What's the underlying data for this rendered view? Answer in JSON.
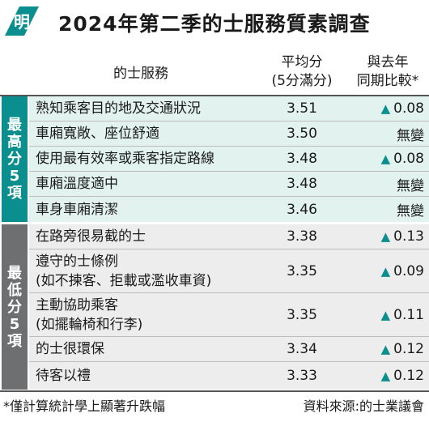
{
  "header": {
    "title": "2024年第二季的士服務質素調查",
    "logo_glyph": "明"
  },
  "columns": {
    "service": "的士服務",
    "avg_line1": "平均分",
    "avg_line2": "(5分滿分)",
    "cmp_line1": "與去年",
    "cmp_line2": "同期比較*"
  },
  "groups": {
    "top": {
      "label": [
        "最",
        "高",
        "分",
        "5",
        "項"
      ],
      "color": "#0b8f8e"
    },
    "bottom": {
      "label": [
        "最",
        "低",
        "分",
        "5",
        "項"
      ],
      "color": "#6e6f70"
    }
  },
  "colors": {
    "up_arrow": "#0b8f8e",
    "top_row_bg": "#e2f2ef",
    "bottom_row_bg": "#ededed"
  },
  "chart_data": {
    "type": "table",
    "title": "2024年第二季的士服務質素調查",
    "columns": [
      "的士服務",
      "平均分(5分滿分)",
      "與去年同期比較*"
    ],
    "rows": [
      {
        "group": "最高分5項",
        "service": "熟知乘客目的地及交通狀況",
        "score": "3.51",
        "change_dir": "up",
        "change": "0.08"
      },
      {
        "group": "最高分5項",
        "service": "車廂寬敞、座位舒適",
        "score": "3.50",
        "change_dir": "none",
        "change": "無變"
      },
      {
        "group": "最高分5項",
        "service": "使用最有效率或乘客指定路線",
        "score": "3.48",
        "change_dir": "up",
        "change": "0.08"
      },
      {
        "group": "最高分5項",
        "service": "車廂溫度適中",
        "score": "3.48",
        "change_dir": "none",
        "change": "無變"
      },
      {
        "group": "最高分5項",
        "service": "車身車廂清潔",
        "score": "3.46",
        "change_dir": "none",
        "change": "無變"
      },
      {
        "group": "最低分5項",
        "service": "在路旁很易截的士",
        "score": "3.38",
        "change_dir": "up",
        "change": "0.13"
      },
      {
        "group": "最低分5項",
        "service": "遵守的士條例\n(如不揀客、拒載或濫收車資)",
        "score": "3.35",
        "change_dir": "up",
        "change": "0.09"
      },
      {
        "group": "最低分5項",
        "service": "主動協助乘客\n(如擺輪椅和行李)",
        "score": "3.35",
        "change_dir": "up",
        "change": "0.11"
      },
      {
        "group": "最低分5項",
        "service": "的士很環保",
        "score": "3.34",
        "change_dir": "up",
        "change": "0.12"
      },
      {
        "group": "最低分5項",
        "service": "待客以禮",
        "score": "3.33",
        "change_dir": "up",
        "change": "0.12"
      }
    ]
  },
  "footer": {
    "note": "*僅計算統計學上顯著升跌幅",
    "source": "資料來源:的士業議會"
  }
}
